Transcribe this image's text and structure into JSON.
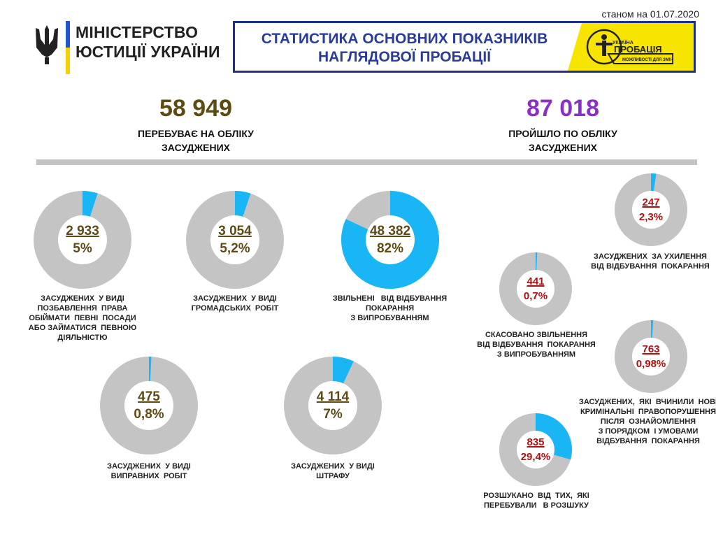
{
  "header": {
    "date_label": "станом на 01.07.2020",
    "ministry_line1": "МІНІСТЕРСТВО",
    "ministry_line2": "ЮСТИЦІЇ УКРАЇНИ",
    "title_line1": "СТАТИСТИКА ОСНОВНИХ ПОКАЗНИКІВ",
    "title_line2": "НАГЛЯДОВОЇ ПРОБАЦІЇ",
    "probation_logo_line1": "УКРАЇНА",
    "probation_logo_line2": "ПРОБАЦІЯ",
    "probation_logo_line3": "МОЖЛИВОСТІ ДЛЯ ЗМІН"
  },
  "colors": {
    "ring_gray": "#c4c4c4",
    "accent_blue": "#19b5f5",
    "brown": "#5e4b14",
    "purple": "#8b2fc9",
    "red": "#b01010",
    "navy": "#1e2f8c",
    "yellow": "#f7e500"
  },
  "totals": {
    "registered_value": "58 949",
    "registered_label_line1": "ПЕРЕБУВАЄ НА ОБЛІКУ",
    "registered_label_line2": "ЗАСУДЖЕНИХ",
    "passed_value": "87 018",
    "passed_label_line1": "ПРОЙШЛО ПО ОБЛІКУ",
    "passed_label_line2": "ЗАСУДЖЕНИХ"
  },
  "chart_data": [
    {
      "type": "pie",
      "count": "2 933",
      "percent_label": "5%",
      "percent": 5,
      "caption": [
        "ЗАСУДЖЕНИХ  У ВИДІ",
        "ПОЗБАВЛЕННЯ  ПРАВА",
        "ОБІЙМАТИ  ПЕВНІ  ПОСАДИ",
        "АБО ЗАЙМАТИСЯ  ПЕВНОЮ",
        "ДІЯЛЬНІСТЮ"
      ]
    },
    {
      "type": "pie",
      "count": "3 054",
      "percent_label": "5,2%",
      "percent": 5.2,
      "caption": [
        "ЗАСУДЖЕНИХ  У ВИДІ",
        "ГРОМАДСЬКИХ  РОБІТ"
      ]
    },
    {
      "type": "pie",
      "count": "48 382",
      "percent_label": "82%",
      "percent": 82,
      "caption": [
        "ЗВІЛЬНЕНІ   ВІД ВІДБУВАННЯ",
        "ПОКАРАННЯ",
        "З ВИПРОБУВАННЯМ"
      ]
    },
    {
      "type": "pie",
      "count": "475",
      "percent_label": "0,8%",
      "percent": 0.8,
      "caption": [
        "ЗАСУДЖЕНИХ  У ВИДІ",
        "ВИПРАВНИХ  РОБІТ"
      ]
    },
    {
      "type": "pie",
      "count": "4 114",
      "percent_label": "7%",
      "percent": 7,
      "caption": [
        "ЗАСУДЖЕНИХ  У ВИДІ",
        "ШТРАФУ"
      ]
    },
    {
      "type": "pie",
      "count": "247",
      "percent_label": "2,3%",
      "percent": 2.3,
      "caption": [
        "ЗАСУДЖЕНИХ  ЗА УХИЛЕННЯ",
        "ВІД ВІДБУВАННЯ  ПОКАРАННЯ"
      ]
    },
    {
      "type": "pie",
      "count": "441",
      "percent_label": "0,7%",
      "percent": 0.7,
      "caption": [
        "СКАСОВАНО ЗВІЛЬНЕННЯ",
        "ВІД ВІДБУВАННЯ  ПОКАРАННЯ",
        "З ВИПРОБУВАННЯМ"
      ]
    },
    {
      "type": "pie",
      "count": "763",
      "percent_label": "0,98%",
      "percent": 0.98,
      "caption": [
        "ЗАСУДЖЕНИХ,  ЯКІ  ВЧИНИЛИ  НОВІ",
        "КРИМІНАЛЬНІ  ПРАВОПОРУШЕННЯ",
        "ПІСЛЯ  ОЗНАЙОМЛЕННЯ",
        "З ПОРЯДКОМ  І УМОВАМИ",
        "ВІДБУВАННЯ  ПОКАРАННЯ"
      ]
    },
    {
      "type": "pie",
      "count": "835",
      "percent_label": "29,4%",
      "percent": 29.4,
      "caption": [
        "РОЗШУКАНО  ВІД  ТИХ,  ЯКІ",
        "ПЕРЕБУВАЛИ   В РОЗШУКУ"
      ]
    }
  ]
}
